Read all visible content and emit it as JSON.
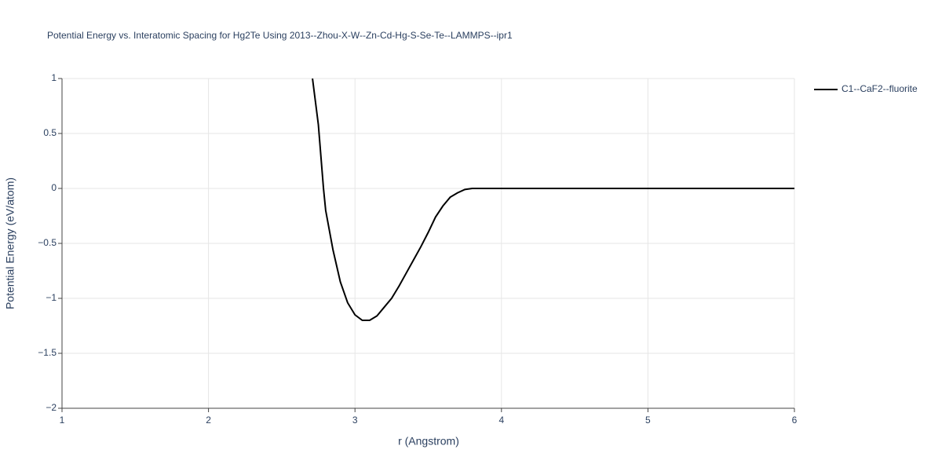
{
  "chart_data": {
    "type": "line",
    "title": "Potential Energy vs. Interatomic Spacing for Hg2Te Using 2013--Zhou-X-W--Zn-Cd-Hg-S-Se-Te--LAMMPS--ipr1",
    "x_label": "r (Angstrom)",
    "y_label": "Potential Energy (eV/atom)",
    "x": [
      2.71,
      2.75,
      2.785,
      2.8,
      2.85,
      2.9,
      2.95,
      3.0,
      3.05,
      3.1,
      3.15,
      3.2,
      3.25,
      3.3,
      3.35,
      3.4,
      3.45,
      3.5,
      3.55,
      3.6,
      3.65,
      3.7,
      3.75,
      3.8,
      3.85,
      4.0,
      5.0,
      6.0
    ],
    "series": [
      {
        "name": "C1--CaF2--fluorite",
        "color": "#000000",
        "values": [
          1.0,
          0.58,
          0.0,
          -0.2,
          -0.56,
          -0.85,
          -1.04,
          -1.15,
          -1.2,
          -1.2,
          -1.16,
          -1.08,
          -1.0,
          -0.89,
          -0.77,
          -0.65,
          -0.53,
          -0.4,
          -0.26,
          -0.16,
          -0.08,
          -0.04,
          -0.01,
          0,
          0,
          0,
          0,
          0
        ]
      }
    ],
    "xlim": [
      1,
      6
    ],
    "xticks": [
      1,
      2,
      3,
      4,
      5,
      6
    ],
    "ylim": [
      -2,
      1
    ],
    "yticks": [
      {
        "value": -2,
        "label": "−2"
      },
      {
        "value": -1.5,
        "label": "−1.5"
      },
      {
        "value": -1,
        "label": "−1"
      },
      {
        "value": -0.5,
        "label": "−0.5"
      },
      0,
      0.5,
      1
    ],
    "grid": true,
    "legend": "right"
  }
}
